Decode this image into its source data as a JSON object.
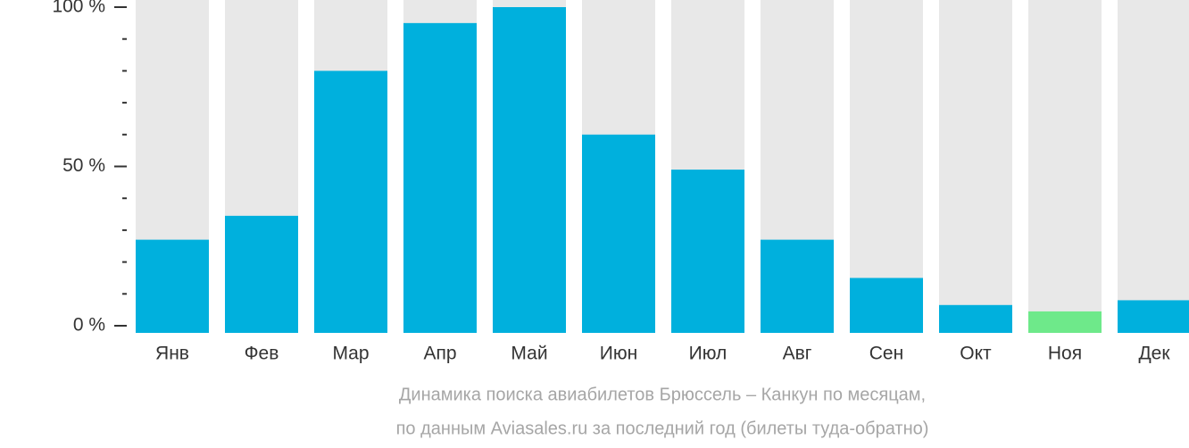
{
  "chart_data": {
    "type": "bar",
    "categories": [
      "Янв",
      "Фев",
      "Мар",
      "Апр",
      "Май",
      "Июн",
      "Июл",
      "Авг",
      "Сен",
      "Окт",
      "Ноя",
      "Дек"
    ],
    "values": [
      27,
      34.5,
      80,
      95,
      100,
      60,
      49,
      27,
      15,
      6.5,
      4.5,
      8
    ],
    "colors": [
      "#00b0dd",
      "#00b0dd",
      "#00b0dd",
      "#00b0dd",
      "#00b0dd",
      "#00b0dd",
      "#00b0dd",
      "#00b0dd",
      "#00b0dd",
      "#00b0dd",
      "#6ee98a",
      "#00b0dd"
    ],
    "track_color": "#e8e8e8",
    "ylim": [
      0,
      100
    ],
    "yticks": [
      {
        "value": 0,
        "label": "0 %"
      },
      {
        "value": 50,
        "label": "50 %"
      },
      {
        "value": 100,
        "label": "100 %"
      }
    ],
    "minor_yticks": [
      10,
      20,
      30,
      40,
      60,
      70,
      80,
      90
    ],
    "caption": [
      "Динамика поиска авиабилетов Брюссель – Канкун по месяцам,",
      "по данным Aviasales.ru за последний год (билеты туда-обратно)"
    ]
  }
}
